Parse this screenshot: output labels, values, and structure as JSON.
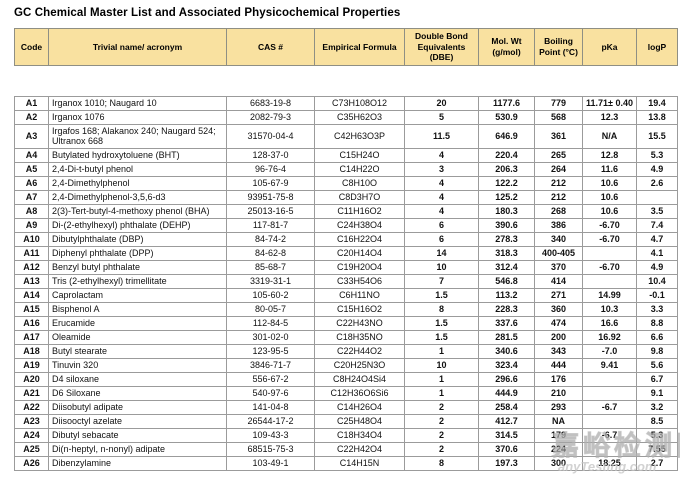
{
  "title": "GC Chemical Master List and Associated Physicochemical Properties",
  "columns": [
    {
      "key": "code",
      "label": "Code"
    },
    {
      "key": "name",
      "label": "Trivial name/ acronym"
    },
    {
      "key": "cas",
      "label": "CAS #"
    },
    {
      "key": "formula",
      "label": "Empirical Formula"
    },
    {
      "key": "dbe",
      "label": "Double Bond Equivalents (DBE)"
    },
    {
      "key": "molwt",
      "label": "Mol. Wt (g/mol)"
    },
    {
      "key": "bp",
      "label": "Boiling Point (°C)"
    },
    {
      "key": "pka",
      "label": "pKa"
    },
    {
      "key": "logp",
      "label": "logP"
    }
  ],
  "rows": [
    {
      "code": "A1",
      "name": "Irganox 1010; Naugard 10",
      "cas": "6683-19-8",
      "formula": "C73H108O12",
      "dbe": "20",
      "molwt": "1177.6",
      "bp": "779",
      "pka": "11.71± 0.40",
      "logp": "19.4"
    },
    {
      "code": "A2",
      "name": "Irganox 1076",
      "cas": "2082-79-3",
      "formula": "C35H62O3",
      "dbe": "5",
      "molwt": "530.9",
      "bp": "568",
      "pka": "12.3",
      "logp": "13.8"
    },
    {
      "code": "A3",
      "name": "Irgafos 168; Alakanox 240; Naugard 524; Ultranox 668",
      "cas": "31570-04-4",
      "formula": "C42H63O3P",
      "dbe": "11.5",
      "molwt": "646.9",
      "bp": "361",
      "pka": "N/A",
      "logp": "15.5"
    },
    {
      "code": "A4",
      "name": "Butylated hydroxytoluene (BHT)",
      "cas": "128-37-0",
      "formula": "C15H24O",
      "dbe": "4",
      "molwt": "220.4",
      "bp": "265",
      "pka": "12.8",
      "logp": "5.3"
    },
    {
      "code": "A5",
      "name": "2,4-Di-t-butyl phenol",
      "cas": "96-76-4",
      "formula": "C14H22O",
      "dbe": "3",
      "molwt": "206.3",
      "bp": "264",
      "pka": "11.6",
      "logp": "4.9"
    },
    {
      "code": "A6",
      "name": "2,4-Dimethylphenol",
      "cas": "105-67-9",
      "formula": "C8H10O",
      "dbe": "4",
      "molwt": "122.2",
      "bp": "212",
      "pka": "10.6",
      "logp": "2.6"
    },
    {
      "code": "A7",
      "name": "2,4-Dimethylphenol-3,5,6-d3",
      "cas": "93951-75-8",
      "formula": "C8D3H7O",
      "dbe": "4",
      "molwt": "125.2",
      "bp": "212",
      "pka": "10.6",
      "logp": ""
    },
    {
      "code": "A8",
      "name": "2(3)-Tert-butyl-4-methoxy phenol (BHA)",
      "cas": "25013-16-5",
      "formula": "C11H16O2",
      "dbe": "4",
      "molwt": "180.3",
      "bp": "268",
      "pka": "10.6",
      "logp": "3.5"
    },
    {
      "code": "A9",
      "name": "Di-(2-ethylhexyl) phthalate (DEHP)",
      "cas": "117-81-7",
      "formula": "C24H38O4",
      "dbe": "6",
      "molwt": "390.6",
      "bp": "386",
      "pka": "-6.70",
      "logp": "7.4"
    },
    {
      "code": "A10",
      "name": "Dibutylphthalate (DBP)",
      "cas": "84-74-2",
      "formula": "C16H22O4",
      "dbe": "6",
      "molwt": "278.3",
      "bp": "340",
      "pka": "-6.70",
      "logp": "4.7"
    },
    {
      "code": "A11",
      "name": "Diphenyl phthalate (DPP)",
      "cas": "84-62-8",
      "formula": "C20H14O4",
      "dbe": "14",
      "molwt": "318.3",
      "bp": "400-405",
      "pka": "",
      "logp": "4.1"
    },
    {
      "code": "A12",
      "name": "Benzyl butyl phthalate",
      "cas": "85-68-7",
      "formula": "C19H20O4",
      "dbe": "10",
      "molwt": "312.4",
      "bp": "370",
      "pka": "-6.70",
      "logp": "4.9"
    },
    {
      "code": "A13",
      "name": "Tris (2-ethylhexyl) trimellitate",
      "cas": "3319-31-1",
      "formula": "C33H54O6",
      "dbe": "7",
      "molwt": "546.8",
      "bp": "414",
      "pka": "",
      "logp": "10.4"
    },
    {
      "code": "A14",
      "name": "Caprolactam",
      "cas": "105-60-2",
      "formula": "C6H11NO",
      "dbe": "1.5",
      "molwt": "113.2",
      "bp": "271",
      "pka": "14.99",
      "logp": "-0.1"
    },
    {
      "code": "A15",
      "name": "Bisphenol A",
      "cas": "80-05-7",
      "formula": "C15H16O2",
      "dbe": "8",
      "molwt": "228.3",
      "bp": "360",
      "pka": "10.3",
      "logp": "3.3"
    },
    {
      "code": "A16",
      "name": "Erucamide",
      "cas": "112-84-5",
      "formula": "C22H43NO",
      "dbe": "1.5",
      "molwt": "337.6",
      "bp": "474",
      "pka": "16.6",
      "logp": "8.8"
    },
    {
      "code": "A17",
      "name": "Oleamide",
      "cas": "301-02-0",
      "formula": "C18H35NO",
      "dbe": "1.5",
      "molwt": "281.5",
      "bp": "200",
      "pka": "16.92",
      "logp": "6.6"
    },
    {
      "code": "A18",
      "name": "Butyl stearate",
      "cas": "123-95-5",
      "formula": "C22H44O2",
      "dbe": "1",
      "molwt": "340.6",
      "bp": "343",
      "pka": "-7.0",
      "logp": "9.8"
    },
    {
      "code": "A19",
      "name": "Tinuvin 320",
      "cas": "3846-71-7",
      "formula": "C20H25N3O",
      "dbe": "10",
      "molwt": "323.4",
      "bp": "444",
      "pka": "9.41",
      "logp": "5.6"
    },
    {
      "code": "A20",
      "name": "D4 siloxane",
      "cas": "556-67-2",
      "formula": "C8H24O4Si4",
      "dbe": "1",
      "molwt": "296.6",
      "bp": "176",
      "pka": "",
      "logp": "6.7"
    },
    {
      "code": "A21",
      "name": "D6 Siloxane",
      "cas": "540-97-6",
      "formula": "C12H36O6Si6",
      "dbe": "1",
      "molwt": "444.9",
      "bp": "210",
      "pka": "",
      "logp": "9.1"
    },
    {
      "code": "A22",
      "name": "Diisobutyl adipate",
      "cas": "141-04-8",
      "formula": "C14H26O4",
      "dbe": "2",
      "molwt": "258.4",
      "bp": "293",
      "pka": "-6.7",
      "logp": "3.2"
    },
    {
      "code": "A23",
      "name": "Diisooctyl azelate",
      "cas": "26544-17-2",
      "formula": "C25H48O4",
      "dbe": "2",
      "molwt": "412.7",
      "bp": "NA",
      "pka": "",
      "logp": "8.5"
    },
    {
      "code": "A24",
      "name": "Dibutyl sebacate",
      "cas": "109-43-3",
      "formula": "C18H34O4",
      "dbe": "2",
      "molwt": "314.5",
      "bp": "179",
      "pka": "-6.7",
      "logp": "5.3"
    },
    {
      "code": "A25",
      "name": "Di(n-heptyl, n-nonyl) adipate",
      "cas": "68515-75-3",
      "formula": "C22H42O4",
      "dbe": "2",
      "molwt": "370.6",
      "bp": "224",
      "pka": "",
      "logp": "7.55"
    },
    {
      "code": "A26",
      "name": "Dibenzylamine",
      "cas": "103-49-1",
      "formula": "C14H15N",
      "dbe": "8",
      "molwt": "197.3",
      "bp": "300",
      "pka": "18.25",
      "logp": "2.7"
    }
  ],
  "watermark": {
    "cn": "嘉峪检测网",
    "en": "anyTesting.com"
  },
  "colors": {
    "header_bg": "#F9E1A0",
    "header_border": "#8F8F84",
    "data_border": "#9B9B9B",
    "text": "#111111"
  }
}
